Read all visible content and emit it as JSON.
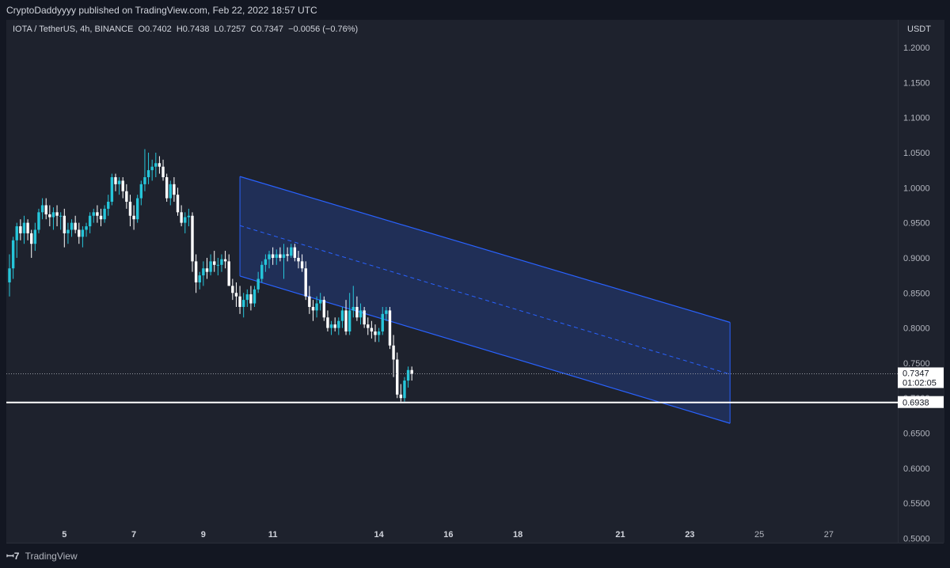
{
  "header": {
    "published": "CryptoDaddyyyy published on TradingView.com, Feb 22, 2022 18:57 UTC"
  },
  "legend": {
    "text": "IOTA / TetherUS, 4h, BINANCE  O0.7402  H0.7438  L0.7257  C0.7347  −0.0056 (−0.76%)"
  },
  "footer": {
    "brand": "TradingView",
    "logo": "tradingview-logo-icon"
  },
  "chart_data": {
    "type": "candlestick",
    "symbol": "IOTA / TetherUS",
    "interval": "4h",
    "exchange": "BINANCE",
    "ohlc": {
      "open": 0.7402,
      "high": 0.7438,
      "low": 0.7257,
      "close": 0.7347,
      "change": -0.0056,
      "change_pct": -0.76
    },
    "currency_label": "USDT",
    "y_ticks": [
      "1.2000",
      "1.1500",
      "1.1000",
      "1.0500",
      "1.0000",
      "0.9500",
      "0.9000",
      "0.8500",
      "0.8000",
      "0.7500",
      "0.7000",
      "0.6500",
      "0.6000",
      "0.5500",
      "0.5000"
    ],
    "ylim": [
      0.4938,
      1.2395
    ],
    "x_ticks": [
      "5",
      "7",
      "9",
      "11",
      "14",
      "16",
      "18",
      "21",
      "23",
      "25",
      "27"
    ],
    "x_tick_bold": [
      "5",
      "7",
      "9",
      "11",
      "14",
      "16",
      "18",
      "21",
      "23"
    ],
    "x_tick_index": [
      15,
      34,
      53,
      72,
      101,
      120,
      139,
      167,
      186,
      205,
      224
    ],
    "current_price": {
      "value": "0.7347",
      "countdown": "01:02:05",
      "color": "#ffffff"
    },
    "horizontal_line": {
      "value": "0.6938",
      "color": "#ffffff"
    },
    "channel": {
      "start_index": 63,
      "end_index": 197,
      "upper": [
        1.016,
        0.808
      ],
      "middle": [
        0.946,
        0.734
      ],
      "lower": [
        0.874,
        0.664
      ],
      "color": "#2962ff",
      "fill": "#2962ff"
    },
    "colors": {
      "up": "#26c6da",
      "down": "#ffffff"
    },
    "candles": [
      [
        0.865,
        0.905,
        0.845,
        0.885
      ],
      [
        0.885,
        0.93,
        0.87,
        0.925
      ],
      [
        0.925,
        0.95,
        0.9,
        0.945
      ],
      [
        0.945,
        0.955,
        0.925,
        0.935
      ],
      [
        0.935,
        0.96,
        0.92,
        0.95
      ],
      [
        0.95,
        0.955,
        0.925,
        0.935
      ],
      [
        0.935,
        0.94,
        0.9,
        0.92
      ],
      [
        0.92,
        0.95,
        0.91,
        0.94
      ],
      [
        0.94,
        0.97,
        0.935,
        0.965
      ],
      [
        0.965,
        0.985,
        0.955,
        0.975
      ],
      [
        0.975,
        0.985,
        0.955,
        0.962
      ],
      [
        0.962,
        0.975,
        0.945,
        0.958
      ],
      [
        0.958,
        0.972,
        0.94,
        0.965
      ],
      [
        0.965,
        0.975,
        0.945,
        0.96
      ],
      [
        0.96,
        0.965,
        0.94,
        0.96
      ],
      [
        0.96,
        0.97,
        0.915,
        0.935
      ],
      [
        0.935,
        0.95,
        0.92,
        0.94
      ],
      [
        0.94,
        0.955,
        0.93,
        0.95
      ],
      [
        0.95,
        0.96,
        0.935,
        0.94
      ],
      [
        0.94,
        0.95,
        0.92,
        0.93
      ],
      [
        0.93,
        0.945,
        0.915,
        0.94
      ],
      [
        0.94,
        0.95,
        0.93,
        0.945
      ],
      [
        0.945,
        0.965,
        0.935,
        0.96
      ],
      [
        0.96,
        0.97,
        0.95,
        0.965
      ],
      [
        0.965,
        0.975,
        0.95,
        0.96
      ],
      [
        0.96,
        0.97,
        0.945,
        0.955
      ],
      [
        0.955,
        0.975,
        0.95,
        0.97
      ],
      [
        0.97,
        0.99,
        0.96,
        0.98
      ],
      [
        0.98,
        1.02,
        0.975,
        1.015
      ],
      [
        1.015,
        1.02,
        0.995,
        1.005
      ],
      [
        1.005,
        1.015,
        0.99,
        1.01
      ],
      [
        1.01,
        1.015,
        0.985,
        0.995
      ],
      [
        0.995,
        1.005,
        0.97,
        0.98
      ],
      [
        0.98,
        0.99,
        0.945,
        0.96
      ],
      [
        0.96,
        0.975,
        0.94,
        0.955
      ],
      [
        0.955,
        0.99,
        0.95,
        0.985
      ],
      [
        0.985,
        1.01,
        0.975,
        1.005
      ],
      [
        1.005,
        1.055,
        0.995,
        1.015
      ],
      [
        1.015,
        1.05,
        1.005,
        1.025
      ],
      [
        1.025,
        1.04,
        1.01,
        1.03
      ],
      [
        1.03,
        1.05,
        1.015,
        1.035
      ],
      [
        1.035,
        1.045,
        1.02,
        1.03
      ],
      [
        1.03,
        1.04,
        1.01,
        1.015
      ],
      [
        1.015,
        1.02,
        0.98,
        0.985
      ],
      [
        0.985,
        1.01,
        0.975,
        1.005
      ],
      [
        1.005,
        1.015,
        0.98,
        0.99
      ],
      [
        0.99,
        1.0,
        0.96,
        0.965
      ],
      [
        0.965,
        0.975,
        0.945,
        0.95
      ],
      [
        0.95,
        0.965,
        0.935,
        0.958
      ],
      [
        0.958,
        0.97,
        0.945,
        0.96
      ],
      [
        0.96,
        0.965,
        0.88,
        0.895
      ],
      [
        0.895,
        0.905,
        0.85,
        0.865
      ],
      [
        0.865,
        0.88,
        0.855,
        0.875
      ],
      [
        0.875,
        0.895,
        0.86,
        0.885
      ],
      [
        0.885,
        0.9,
        0.87,
        0.88
      ],
      [
        0.88,
        0.905,
        0.875,
        0.895
      ],
      [
        0.895,
        0.91,
        0.88,
        0.89
      ],
      [
        0.89,
        0.9,
        0.875,
        0.89
      ],
      [
        0.89,
        0.905,
        0.88,
        0.898
      ],
      [
        0.898,
        0.91,
        0.885,
        0.895
      ],
      [
        0.895,
        0.905,
        0.86,
        0.86
      ],
      [
        0.86,
        0.87,
        0.84,
        0.85
      ],
      [
        0.85,
        0.865,
        0.83,
        0.845
      ],
      [
        0.845,
        0.86,
        0.82,
        0.83
      ],
      [
        0.83,
        0.85,
        0.815,
        0.84
      ],
      [
        0.84,
        0.855,
        0.83,
        0.848
      ],
      [
        0.848,
        0.86,
        0.825,
        0.835
      ],
      [
        0.835,
        0.86,
        0.83,
        0.855
      ],
      [
        0.855,
        0.88,
        0.85,
        0.87
      ],
      [
        0.87,
        0.895,
        0.865,
        0.89
      ],
      [
        0.89,
        0.905,
        0.88,
        0.898
      ],
      [
        0.898,
        0.91,
        0.885,
        0.905
      ],
      [
        0.905,
        0.915,
        0.89,
        0.9
      ],
      [
        0.9,
        0.912,
        0.89,
        0.905
      ],
      [
        0.905,
        0.915,
        0.895,
        0.9
      ],
      [
        0.9,
        0.92,
        0.87,
        0.905
      ],
      [
        0.905,
        0.915,
        0.895,
        0.903
      ],
      [
        0.903,
        0.92,
        0.9,
        0.915
      ],
      [
        0.915,
        0.92,
        0.895,
        0.9
      ],
      [
        0.9,
        0.91,
        0.885,
        0.895
      ],
      [
        0.895,
        0.905,
        0.88,
        0.885
      ],
      [
        0.885,
        0.895,
        0.84,
        0.845
      ],
      [
        0.845,
        0.86,
        0.82,
        0.83
      ],
      [
        0.83,
        0.84,
        0.81,
        0.825
      ],
      [
        0.825,
        0.845,
        0.815,
        0.835
      ],
      [
        0.835,
        0.85,
        0.825,
        0.84
      ],
      [
        0.84,
        0.845,
        0.81,
        0.815
      ],
      [
        0.815,
        0.825,
        0.795,
        0.8
      ],
      [
        0.8,
        0.81,
        0.79,
        0.805
      ],
      [
        0.805,
        0.815,
        0.795,
        0.8
      ],
      [
        0.8,
        0.815,
        0.79,
        0.81
      ],
      [
        0.81,
        0.83,
        0.8,
        0.825
      ],
      [
        0.825,
        0.84,
        0.79,
        0.795
      ],
      [
        0.795,
        0.85,
        0.79,
        0.825
      ],
      [
        0.825,
        0.86,
        0.815,
        0.83
      ],
      [
        0.83,
        0.845,
        0.81,
        0.815
      ],
      [
        0.815,
        0.835,
        0.805,
        0.825
      ],
      [
        0.825,
        0.83,
        0.8,
        0.805
      ],
      [
        0.805,
        0.815,
        0.79,
        0.8
      ],
      [
        0.8,
        0.81,
        0.785,
        0.795
      ],
      [
        0.795,
        0.805,
        0.78,
        0.79
      ],
      [
        0.79,
        0.8,
        0.78,
        0.795
      ],
      [
        0.795,
        0.83,
        0.79,
        0.82
      ],
      [
        0.82,
        0.83,
        0.81,
        0.825
      ],
      [
        0.825,
        0.83,
        0.77,
        0.775
      ],
      [
        0.775,
        0.79,
        0.73,
        0.755
      ],
      [
        0.755,
        0.765,
        0.7,
        0.705
      ],
      [
        0.705,
        0.72,
        0.695,
        0.7
      ],
      [
        0.7,
        0.73,
        0.695,
        0.725
      ],
      [
        0.725,
        0.745,
        0.715,
        0.74
      ],
      [
        0.74,
        0.745,
        0.725,
        0.7347
      ]
    ],
    "candle_start_index": 0,
    "candle_step": 1,
    "x_scale": {
      "first_index": 0,
      "px_per_index": 4.62
    }
  }
}
